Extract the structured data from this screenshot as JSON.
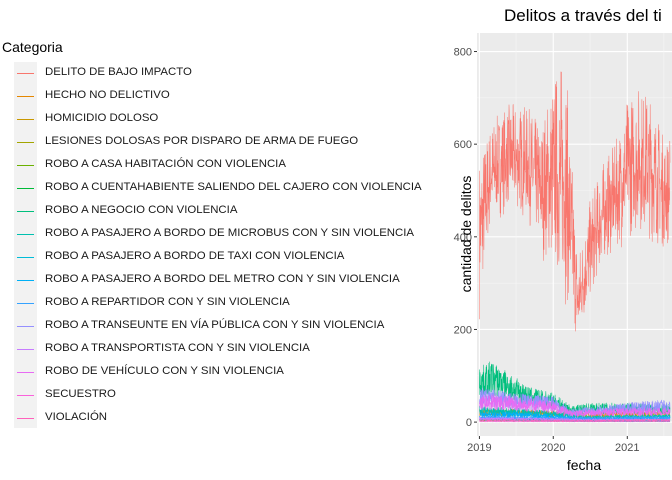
{
  "chart_data": {
    "type": "line",
    "title": "Delitos a través del ti",
    "xlabel": "fecha",
    "ylabel": "cantidad de delitos",
    "x_ticks": [
      "2019",
      "2020",
      "2021"
    ],
    "y_ticks": [
      0,
      200,
      400,
      600,
      800
    ],
    "xlim": [
      "2018-12-20",
      "2021-08-10"
    ],
    "ylim": [
      -30,
      840
    ],
    "grid": true,
    "legend_position": "left",
    "legend_title": "Categoria",
    "series": [
      {
        "name": "DELITO DE BAJO IMPACTO",
        "color": "#F8766D",
        "x": [
          "2019-01",
          "2019-03",
          "2019-06",
          "2019-09",
          "2019-11",
          "2020-01",
          "2020-03",
          "2020-05",
          "2020-07",
          "2020-09",
          "2020-11",
          "2021-01",
          "2021-03",
          "2021-05",
          "2021-07"
        ],
        "min": [
          220,
          420,
          450,
          420,
          350,
          300,
          240,
          150,
          250,
          330,
          360,
          380,
          400,
          380,
          360
        ],
        "max": [
          580,
          650,
          690,
          680,
          640,
          750,
          800,
          360,
          480,
          560,
          600,
          700,
          730,
          700,
          620
        ]
      },
      {
        "name": "HECHO NO DELICTIVO",
        "color": "#E58700",
        "x": [
          "2019-01",
          "2019-07",
          "2020-01",
          "2020-07",
          "2021-01",
          "2021-07"
        ],
        "values": [
          20,
          20,
          18,
          15,
          17,
          18
        ]
      },
      {
        "name": "HOMICIDIO DOLOSO",
        "color": "#C99800",
        "x": [
          "2019-01",
          "2019-07",
          "2020-01",
          "2020-07",
          "2021-01",
          "2021-07"
        ],
        "values": [
          4,
          4,
          4,
          3,
          4,
          4
        ]
      },
      {
        "name": "LESIONES DOLOSAS POR DISPARO DE ARMA DE FUEGO",
        "color": "#A3A500",
        "x": [
          "2019-01",
          "2019-07",
          "2020-01",
          "2020-07",
          "2021-01",
          "2021-07"
        ],
        "values": [
          5,
          5,
          4,
          4,
          4,
          4
        ]
      },
      {
        "name": "ROBO A CASA HABITACIÓN CON VIOLENCIA",
        "color": "#6BB100",
        "x": [
          "2019-01",
          "2019-07",
          "2020-01",
          "2020-07",
          "2021-01",
          "2021-07"
        ],
        "values": [
          6,
          5,
          5,
          4,
          4,
          4
        ]
      },
      {
        "name": "ROBO A CUENTAHABIENTE SALIENDO DEL CAJERO CON VIOLENCIA",
        "color": "#00BA38",
        "x": [
          "2019-01",
          "2019-07",
          "2020-01",
          "2020-07",
          "2021-01",
          "2021-07"
        ],
        "values": [
          5,
          5,
          4,
          3,
          3,
          3
        ]
      },
      {
        "name": "ROBO A NEGOCIO CON VIOLENCIA",
        "color": "#00BF7D",
        "x": [
          "2019-01",
          "2019-03",
          "2019-06",
          "2019-09",
          "2020-01",
          "2020-04",
          "2020-07",
          "2021-01",
          "2021-07"
        ],
        "values": [
          85,
          95,
          75,
          55,
          45,
          25,
          30,
          30,
          28
        ]
      },
      {
        "name": "ROBO A PASAJERO A BORDO DE MICROBUS CON Y SIN VIOLENCIA",
        "color": "#00C0AF",
        "x": [
          "2019-01",
          "2019-07",
          "2020-01",
          "2020-07",
          "2021-01",
          "2021-07"
        ],
        "values": [
          25,
          22,
          18,
          10,
          12,
          12
        ]
      },
      {
        "name": "ROBO A PASAJERO A BORDO DE TAXI CON VIOLENCIA",
        "color": "#00BCD8",
        "x": [
          "2019-01",
          "2019-07",
          "2020-01",
          "2020-07",
          "2021-01",
          "2021-07"
        ],
        "values": [
          5,
          4,
          4,
          3,
          3,
          3
        ]
      },
      {
        "name": "ROBO A PASAJERO A BORDO DEL METRO CON Y SIN VIOLENCIA",
        "color": "#00B0F6",
        "x": [
          "2019-01",
          "2019-07",
          "2020-01",
          "2020-07",
          "2021-01",
          "2021-07"
        ],
        "values": [
          15,
          16,
          12,
          6,
          8,
          9
        ]
      },
      {
        "name": "ROBO A REPARTIDOR CON Y SIN VIOLENCIA",
        "color": "#35A2FF",
        "x": [
          "2019-01",
          "2019-07",
          "2020-01",
          "2020-07",
          "2021-01",
          "2021-07"
        ],
        "values": [
          10,
          9,
          8,
          8,
          9,
          9
        ]
      },
      {
        "name": "ROBO A TRANSEUNTE EN VÍA PÚBLICA CON Y SIN VIOLENCIA",
        "color": "#9590FF",
        "x": [
          "2019-01",
          "2019-07",
          "2020-01",
          "2020-04",
          "2020-07",
          "2021-01",
          "2021-07"
        ],
        "values": [
          55,
          45,
          40,
          20,
          25,
          30,
          35
        ]
      },
      {
        "name": "ROBO A TRANSPORTISTA CON Y SIN VIOLENCIA",
        "color": "#C77CFF",
        "x": [
          "2019-01",
          "2019-07",
          "2020-01",
          "2020-07",
          "2021-01",
          "2021-07"
        ],
        "values": [
          8,
          7,
          6,
          5,
          5,
          5
        ]
      },
      {
        "name": "ROBO DE VEHÍCULO CON Y SIN VIOLENCIA",
        "color": "#E76BF3",
        "x": [
          "2019-01",
          "2019-07",
          "2020-01",
          "2020-04",
          "2020-07",
          "2021-01",
          "2021-07"
        ],
        "values": [
          45,
          40,
          32,
          18,
          20,
          22,
          22
        ]
      },
      {
        "name": "SECUESTRO",
        "color": "#FA62DB",
        "x": [
          "2019-01",
          "2019-07",
          "2020-01",
          "2020-07",
          "2021-01",
          "2021-07"
        ],
        "values": [
          1,
          1,
          1,
          1,
          1,
          1
        ]
      },
      {
        "name": "VIOLACIÓN",
        "color": "#FF62BC",
        "x": [
          "2019-01",
          "2019-07",
          "2020-01",
          "2020-07",
          "2021-01",
          "2021-07"
        ],
        "values": [
          4,
          4,
          3,
          3,
          4,
          4
        ]
      }
    ]
  }
}
